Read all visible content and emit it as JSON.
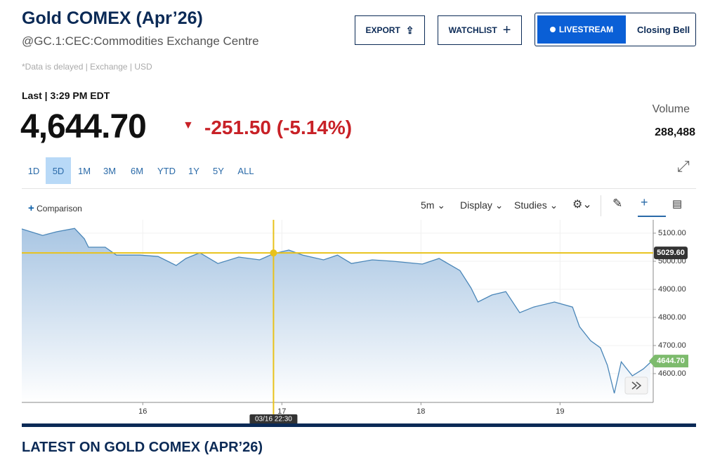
{
  "header": {
    "title": "Gold COMEX (Apr’26)",
    "subtitle": "@GC.1:CEC:Commodities Exchange Centre",
    "note": "*Data is delayed | Exchange | USD",
    "buttons": [
      "EXPORT",
      "WATCHLIST"
    ],
    "livestream": "LIVESTREAM",
    "show": "Closing Bell"
  },
  "quote": {
    "last_label": "Last | 3:29 PM EDT",
    "price": "4,644.70",
    "change": "-251.50 (-5.14%)",
    "volume_label": "Volume",
    "volume": "288,488"
  },
  "ranges": {
    "items": [
      "1D",
      "5D",
      "1M",
      "3M",
      "6M",
      "YTD",
      "1Y",
      "5Y",
      "ALL"
    ],
    "active": 1
  },
  "toolbar": {
    "comparison": "Comparison",
    "interval": "5m",
    "display": "Display",
    "studies": "Studies"
  },
  "chart_data": {
    "type": "line",
    "x": [
      15.13,
      15.28,
      15.38,
      15.51,
      15.58,
      15.61,
      15.73,
      15.81,
      15.98,
      16.11,
      16.24,
      16.31,
      16.41,
      16.54,
      16.69,
      16.84,
      16.94,
      17.05,
      17.15,
      17.3,
      17.4,
      17.5,
      17.65,
      17.8,
      18.01,
      18.13,
      18.28,
      18.36,
      18.41,
      18.51,
      18.61,
      18.71,
      18.81,
      18.96,
      19.09,
      19.14,
      19.22,
      19.29,
      19.34,
      19.39,
      19.44,
      19.52,
      19.6,
      19.65
    ],
    "values": [
      5115,
      5092,
      5105,
      5117,
      5080,
      5050,
      5050,
      5022,
      5022,
      5017,
      4985,
      5010,
      5030,
      4992,
      5015,
      5005,
      5027,
      5040,
      5022,
      5005,
      5022,
      4992,
      5005,
      5000,
      4990,
      5010,
      4967,
      4905,
      4855,
      4880,
      4892,
      4817,
      4837,
      4855,
      4837,
      4767,
      4717,
      4692,
      4630,
      4530,
      4642,
      4592,
      4617,
      4640
    ],
    "color": "#4a86b8",
    "xlim": [
      15.13,
      19.67
    ],
    "xticks": [
      16,
      17,
      18,
      19
    ],
    "ylim": [
      4497.5,
      5147.5
    ],
    "yticks": [
      {
        "value": 4600,
        "label": "4600.00"
      },
      {
        "value": 4700,
        "label": "4700.00"
      },
      {
        "value": 4800,
        "label": "4800.00"
      },
      {
        "value": 4900,
        "label": "4900.00"
      },
      {
        "value": 5000,
        "label": "5000.00"
      },
      {
        "value": 5100,
        "label": "5100.00"
      }
    ],
    "grid": true,
    "crosshair": {
      "x": 16.94,
      "x_label": "03/16 22:30",
      "value": 5029.6,
      "label": "5029.60"
    },
    "last_tag": {
      "value": 4644.7,
      "label": "4644.70"
    }
  },
  "footer": {
    "heading": "LATEST ON GOLD COMEX (APR’26)"
  }
}
